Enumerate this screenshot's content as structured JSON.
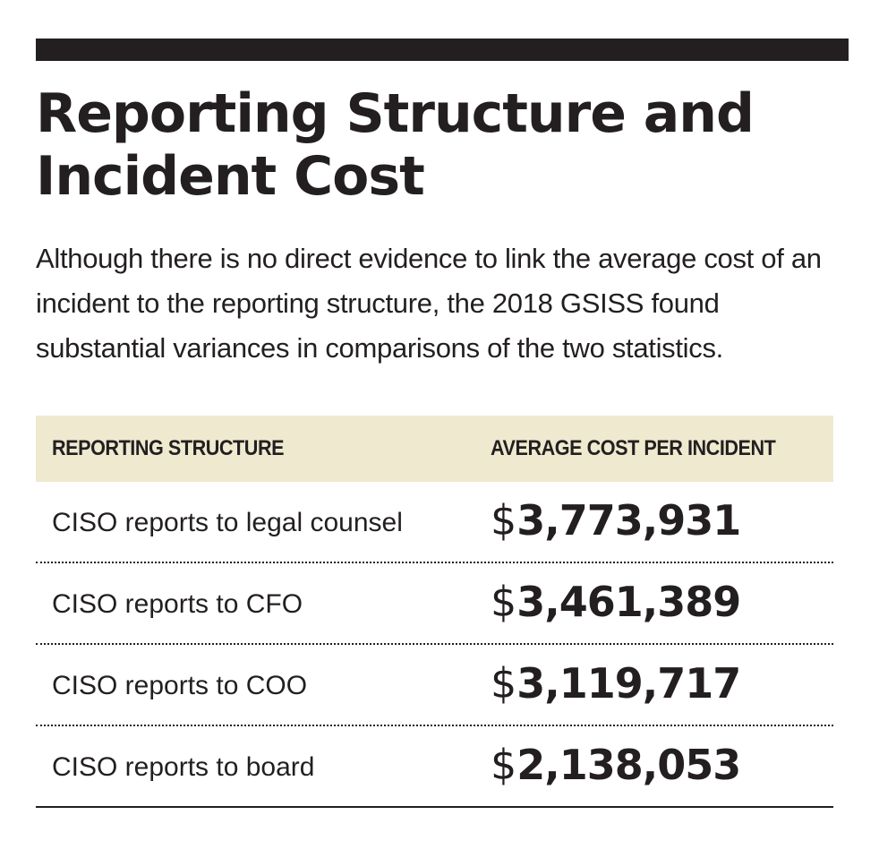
{
  "header": {
    "title": "Reporting Structure and Incident Cost",
    "dek": "Although there is no direct evidence to link the average cost of an incident to the reporting structure, the 2018 GSISS found substantial variances in comparisons of the two statistics."
  },
  "table": {
    "columns": [
      "REPORTING STRUCTURE",
      "AVERAGE COST PER INCIDENT"
    ],
    "currency_symbol": "$",
    "rows": [
      {
        "label": "CISO reports to legal counsel",
        "value": "3,773,931"
      },
      {
        "label": "CISO reports to CFO",
        "value": "3,461,389"
      },
      {
        "label": "CISO reports to COO",
        "value": "3,119,717"
      },
      {
        "label": "CISO reports to board",
        "value": "2,138,053"
      }
    ]
  },
  "colors": {
    "text": "#231f20",
    "header_band": "#efe9cf",
    "rule": "#231f20"
  }
}
